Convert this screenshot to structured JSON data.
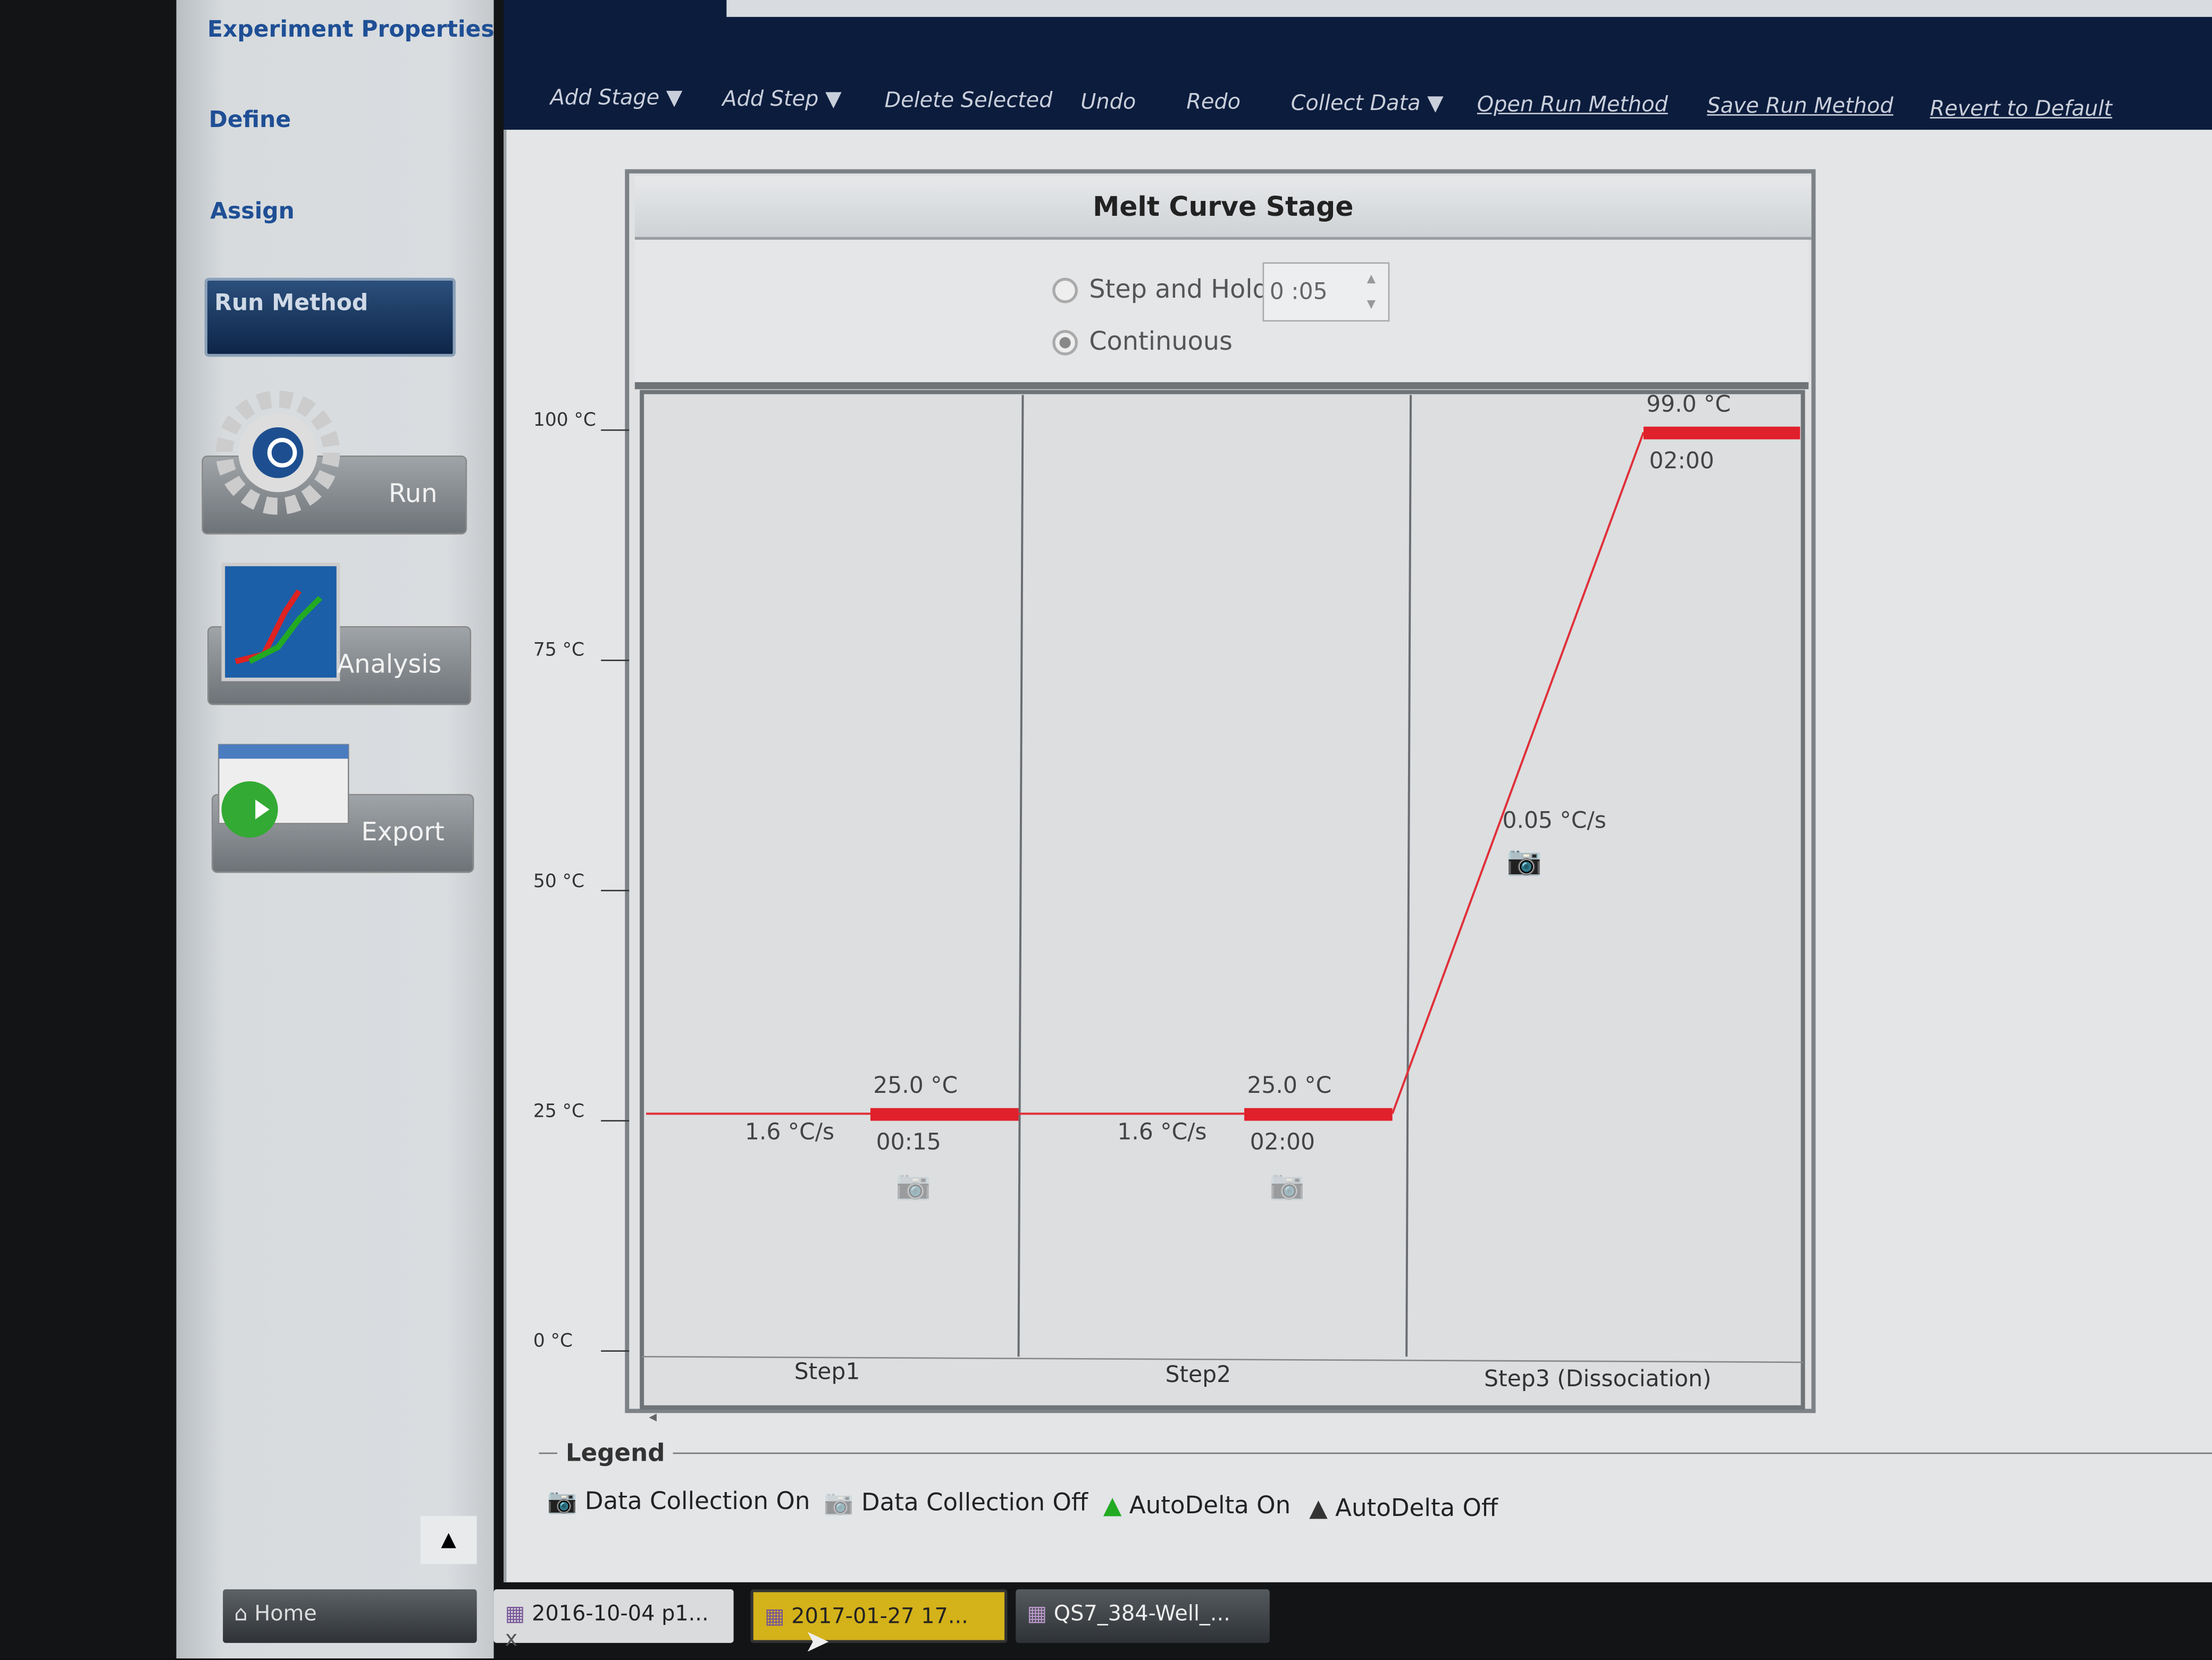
{
  "sidebar": {
    "items": [
      {
        "label": "Experiment Properties"
      },
      {
        "label": "Define"
      },
      {
        "label": "Assign"
      },
      {
        "label": "Run Method"
      }
    ],
    "buttons": {
      "run": "Run",
      "analysis": "Analysis",
      "export": "Export"
    }
  },
  "toolbar": {
    "add_stage": "Add Stage",
    "add_step": "Add Step",
    "delete_selected": "Delete Selected",
    "undo": "Undo",
    "redo": "Redo",
    "collect_data": "Collect Data",
    "open_run_method": "Open Run Method",
    "save_run_method": "Save Run Method",
    "revert_to_default": "Revert to Default"
  },
  "stage": {
    "title": "Melt Curve Stage",
    "options": {
      "step_and_hold": "Step and Hold",
      "continuous": "Continuous",
      "selected": "Continuous",
      "hold_time": "0  :05"
    },
    "y_axis": [
      "100 °C",
      "75 °C",
      "50 °C",
      "25 °C",
      "0 °C"
    ],
    "steps": [
      {
        "name": "Step1",
        "temp": 25.0,
        "temp_label": "25.0 °C",
        "time": "00:15",
        "ramp": "1.6 °C/s",
        "data_collection": false
      },
      {
        "name": "Step2",
        "temp": 25.0,
        "temp_label": "25.0 °C",
        "time": "02:00",
        "ramp": "1.6 °C/s",
        "data_collection": false
      },
      {
        "name": "Step3 (Dissociation)",
        "temp": 99.0,
        "temp_label": "99.0 °C",
        "time": "02:00",
        "ramp": "0.05 °C/s",
        "data_collection": true
      }
    ]
  },
  "legend": {
    "title": "Legend",
    "items": [
      "Data Collection On",
      "Data Collection Off",
      "AutoDelta On",
      "AutoDelta Off"
    ]
  },
  "taskbar": {
    "home": "Home",
    "tabs": [
      "2016-10-04 p1...",
      "2017-01-27 17...",
      "QS7_384-Well_..."
    ],
    "close": "x"
  },
  "colors": {
    "hold_bar": "#e0202a",
    "ramp_line": "#e0303a",
    "active_tab": "#d4b21a",
    "toolbar": "#0c1c3d"
  }
}
